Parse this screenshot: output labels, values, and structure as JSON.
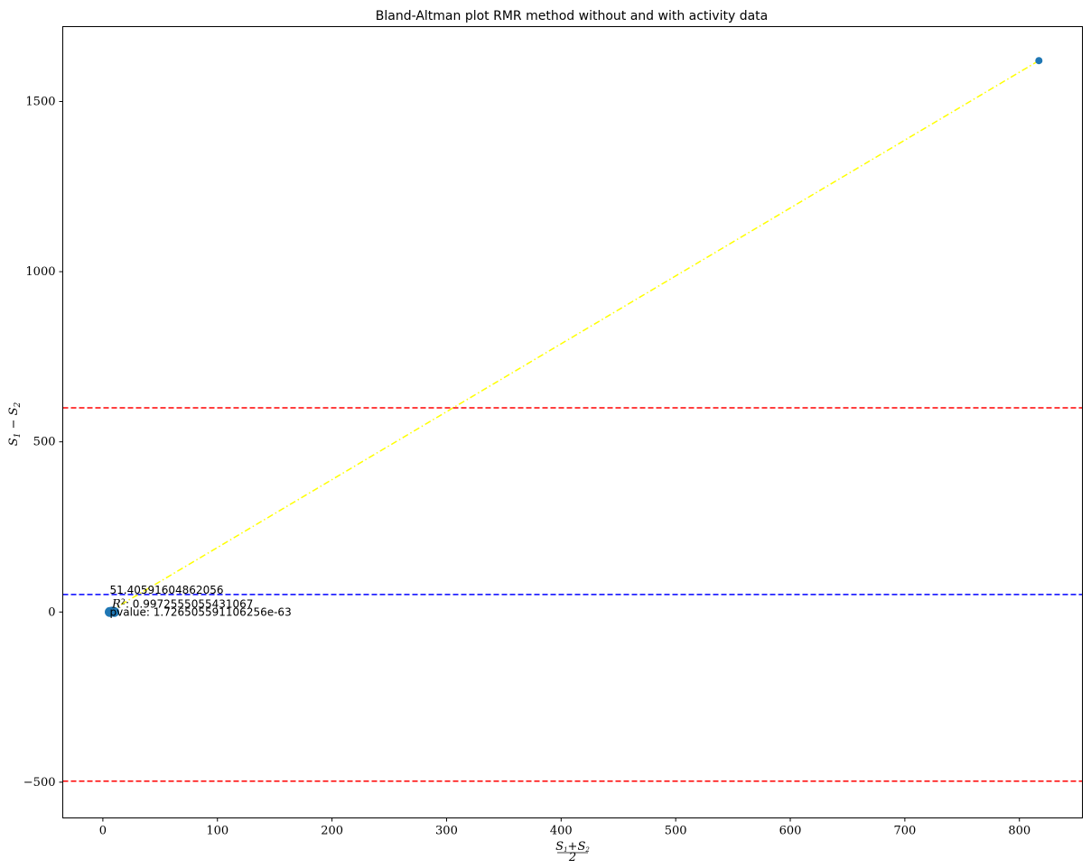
{
  "chart_data": {
    "type": "scatter",
    "title": "Bland-Altman plot RMR method without and with activity data",
    "xlabel": "(S1+S2)/2",
    "ylabel": "S1 − S2",
    "xlim": [
      -35,
      855
    ],
    "ylim": [
      -605,
      1720
    ],
    "x_ticks": [
      0,
      100,
      200,
      300,
      400,
      500,
      600,
      700,
      800
    ],
    "y_ticks": [
      -500,
      0,
      500,
      1000,
      1500
    ],
    "y_tick_labels": [
      "−500",
      "0",
      "500",
      "1000",
      "1500"
    ],
    "grid": false,
    "points": [
      {
        "x": 6,
        "y": 0,
        "size": "large"
      },
      {
        "x": 8,
        "y": 1,
        "size": "large"
      },
      {
        "x": 10,
        "y": 0,
        "size": "large"
      },
      {
        "x": 817,
        "y": 1620,
        "size": "normal"
      }
    ],
    "point_color": "#1f77b4",
    "regression_line": {
      "x": [
        6,
        817
      ],
      "y": [
        2,
        1620
      ],
      "color": "#ffff00",
      "style": "dashdot"
    },
    "mean_line": {
      "y": 51.40591604862056,
      "color": "#0000ff",
      "style": "dashed"
    },
    "limit_lines": [
      {
        "y": 600,
        "color": "#ff0000",
        "style": "dashed"
      },
      {
        "y": -497,
        "color": "#ff0000",
        "style": "dashed"
      }
    ],
    "annotations": {
      "mean_text": "51.40591604862056",
      "r2_label": "R",
      "r2_value": "0.9972555055431067",
      "pvalue_text": "pvalue: 1.726505591106256e-63"
    }
  }
}
